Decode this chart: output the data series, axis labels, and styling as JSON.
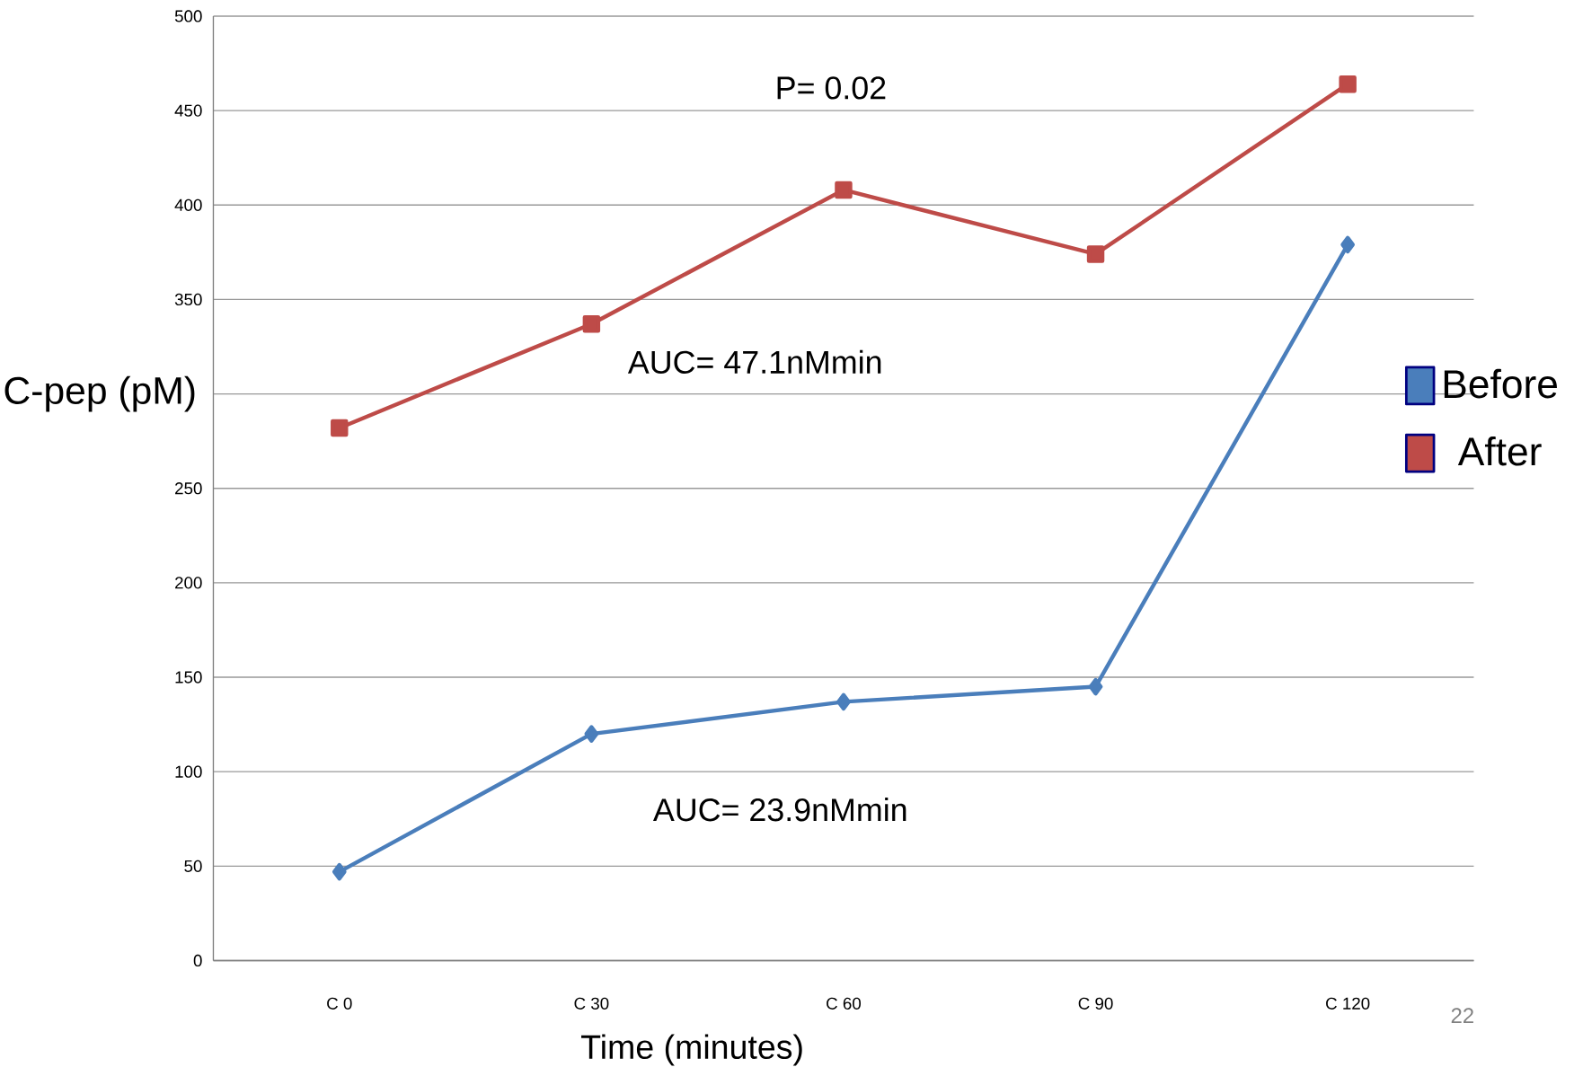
{
  "chart_data": {
    "type": "line",
    "xlabel": "Time (minutes)",
    "ylabel": "C-pep (pM)",
    "categories": [
      "C 0",
      "C 30",
      "C 60",
      "C 90",
      "C 120"
    ],
    "series": [
      {
        "name": "Before",
        "color": "#4a7ebb",
        "marker": "diamond",
        "values": [
          47,
          120,
          137,
          145,
          379
        ]
      },
      {
        "name": "After",
        "color": "#be4b48",
        "marker": "square",
        "values": [
          282,
          337,
          408,
          374,
          464
        ]
      }
    ],
    "ylim": [
      0,
      500
    ],
    "yticks": [
      0,
      50,
      100,
      150,
      200,
      250,
      {
        "value": 300,
        "label": null
      },
      350,
      400,
      450,
      500
    ],
    "grid": "y",
    "legend": "right",
    "annotations": [
      "P= 0.02",
      "AUC=  47.1nMmin",
      "AUC= 23.9nMmin",
      "22"
    ]
  }
}
